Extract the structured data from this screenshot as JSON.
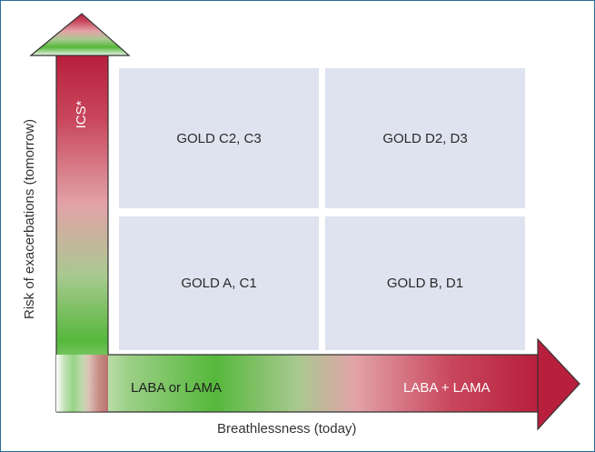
{
  "diagram": {
    "y_axis_label": "Risk of exacerbations (tomorrow)",
    "x_axis_label": "Breathlessness (today)",
    "vertical_arrow_label": "ICS*",
    "horizontal_arrow_left_label": "LABA or LAMA",
    "horizontal_arrow_right_label": "LABA + LAMA",
    "quadrants": {
      "top_left": "GOLD C2, C3",
      "top_right": "GOLD D2, D3",
      "bottom_left": "GOLD A, C1",
      "bottom_right": "GOLD B, D1"
    },
    "colors": {
      "border": "#2a6f97",
      "quadrant_fill": "#dfe2ef",
      "gradient_red": "#b81f3c",
      "gradient_pink": "#e2a3a8",
      "gradient_green": "#55b83b"
    }
  }
}
